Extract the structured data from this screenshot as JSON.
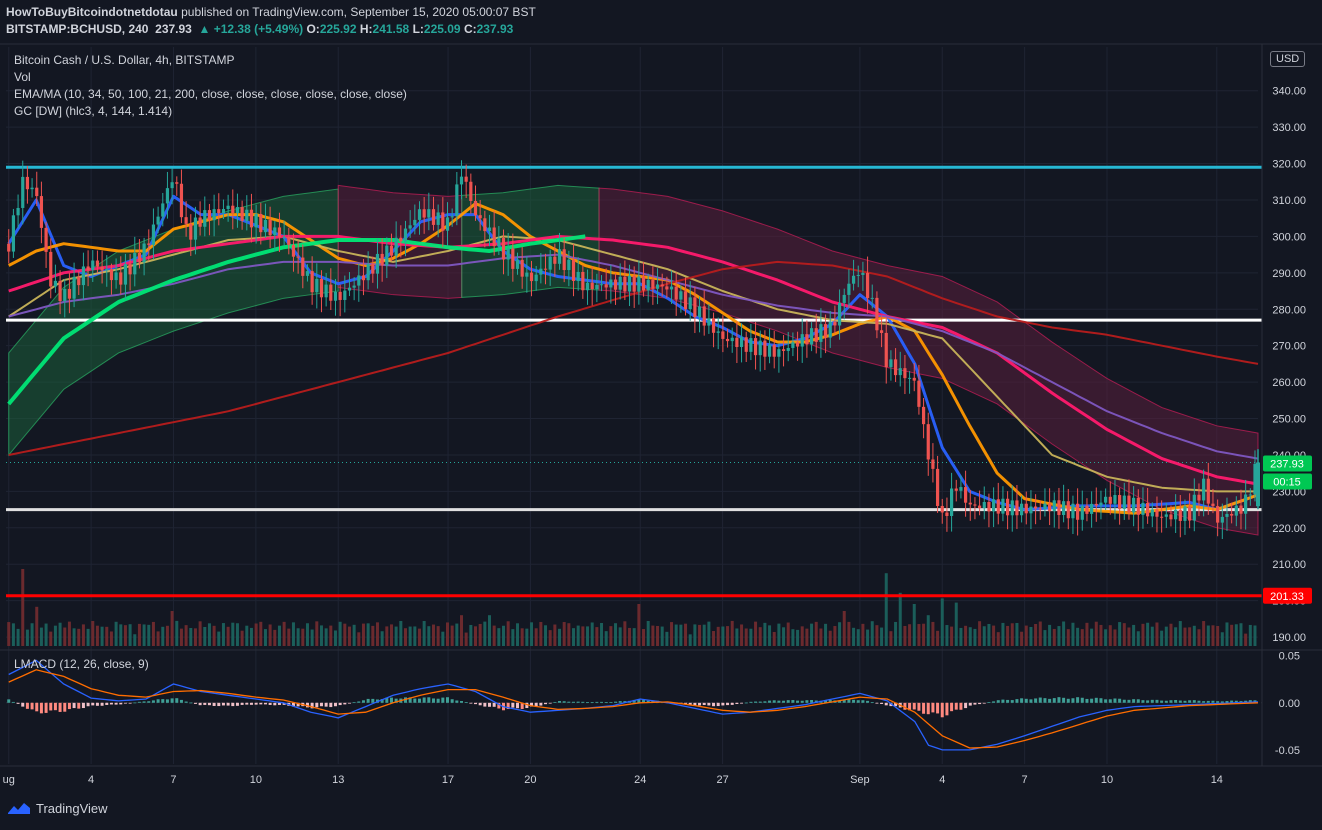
{
  "header": {
    "publisher": "HowToBuyBitcoindotnetdotau",
    "published_text": "published on TradingView.com, September 15, 2020 05:00:07 BST",
    "symbol": "BITSTAMP:BCHUSD, 240",
    "last": "237.93",
    "change": "▲ +12.38 (+5.49%)",
    "o_label": "O:",
    "o_value": "225.92",
    "h_label": "H:",
    "h_value": "241.58",
    "l_label": "L:",
    "l_value": "225.09",
    "c_label": "C:",
    "c_value": "237.93"
  },
  "legend": {
    "title": "Bitcoin Cash / U.S. Dollar, 4h, BITSTAMP",
    "vol": "Vol",
    "ema": "EMA/MA (10, 34, 50, 100, 21, 200, close, close, close, close, close, close)",
    "gc": "GC [DW] (hlc3, 4, 144, 1.414)",
    "lmacd": "LMACD (12, 26, close, 9)"
  },
  "currency": "USD",
  "footer": {
    "brand": "TradingView"
  },
  "price_labels": {
    "last": "237.93",
    "countdown": "00:15",
    "red_line": "201.33"
  },
  "chart_data": [
    {
      "type": "line",
      "title": "Bitcoin Cash / U.S. Dollar, 4h, BITSTAMP",
      "ylim": [
        187,
        352
      ],
      "yticks": [
        "190.00",
        "200.00",
        "210.00",
        "220.00",
        "230.00",
        "240.00",
        "250.00",
        "260.00",
        "270.00",
        "280.00",
        "290.00",
        "300.00",
        "310.00",
        "320.00",
        "330.00",
        "340.00"
      ],
      "xticks": [
        "ug",
        "4",
        "7",
        "10",
        "13",
        "17",
        "20",
        "24",
        "27",
        "Sep",
        "4",
        "7",
        "10",
        "14"
      ],
      "xtick_days": [
        1,
        4,
        7,
        10,
        13,
        17,
        20,
        24,
        27,
        32,
        35,
        38,
        41,
        45
      ],
      "xlim": [
        0.9,
        46.5
      ],
      "horizontal_lines": [
        {
          "value": 319,
          "color": "#26b8d4"
        },
        {
          "value": 277,
          "color": "#ffffff"
        },
        {
          "value": 225,
          "color": "#e0e0e0"
        },
        {
          "value": 201.33,
          "color": "#ff0000"
        }
      ],
      "price_series": {
        "name": "BCHUSD",
        "days": [
          1,
          1.5,
          2,
          2.5,
          3,
          4,
          5,
          6,
          7,
          7.5,
          8,
          9,
          10,
          11,
          12,
          13,
          14,
          15,
          16,
          17,
          17.5,
          18,
          19,
          20,
          21,
          22,
          23,
          24,
          25,
          26,
          27,
          28,
          29,
          30,
          31,
          31.5,
          32,
          32.5,
          33,
          34,
          34.5,
          35,
          35.5,
          36,
          37,
          38,
          39,
          40,
          41,
          42,
          43,
          44,
          44.5,
          45,
          46,
          46.5
        ],
        "values": [
          298,
          315,
          312,
          288,
          283,
          293,
          288,
          297,
          317,
          300,
          305,
          308,
          304,
          300,
          287,
          283,
          290,
          297,
          307,
          303,
          318,
          306,
          296,
          288,
          295,
          286,
          287,
          287,
          286,
          280,
          272,
          270,
          268,
          272,
          275,
          286,
          291,
          280,
          265,
          260,
          240,
          222,
          232,
          226,
          226,
          225,
          226,
          224,
          228,
          226,
          223,
          224,
          232,
          222,
          226,
          238
        ]
      },
      "ema_series": [
        {
          "color": "#2962ff",
          "days": [
            1,
            2,
            3,
            4,
            5,
            6,
            7,
            8,
            9,
            10,
            11,
            12,
            13,
            14,
            15,
            16,
            17,
            18,
            19,
            20,
            21,
            22,
            23,
            24,
            25,
            26,
            27,
            28,
            29,
            30,
            31,
            32,
            33,
            34,
            35,
            36,
            37,
            38,
            40,
            42,
            44,
            45,
            46.5
          ],
          "values": [
            298,
            310,
            292,
            289,
            292,
            295,
            311,
            306,
            306,
            303,
            300,
            290,
            287,
            289,
            296,
            304,
            306,
            306,
            296,
            291,
            289,
            288,
            287,
            287,
            283,
            278,
            275,
            271,
            270,
            272,
            276,
            284,
            278,
            265,
            242,
            230,
            227,
            225,
            226,
            226,
            227,
            225,
            229
          ]
        },
        {
          "color": "#ff9800",
          "days": [
            1,
            2,
            3,
            4,
            5,
            6,
            7,
            8,
            9,
            10,
            11,
            12,
            13,
            14,
            15,
            16,
            17,
            18,
            19,
            20,
            21,
            22,
            23,
            24,
            25,
            26,
            27,
            28,
            29,
            30,
            31,
            32,
            33,
            34,
            35,
            36,
            37,
            38,
            40,
            42,
            44,
            45,
            46.5
          ],
          "values": [
            292,
            296,
            298,
            297,
            296,
            296,
            302,
            304,
            306,
            306,
            304,
            299,
            294,
            292,
            294,
            298,
            303,
            309,
            306,
            300,
            296,
            292,
            290,
            289,
            288,
            284,
            279,
            274,
            271,
            271,
            273,
            276,
            278,
            274,
            262,
            248,
            235,
            228,
            225,
            224,
            226,
            225,
            229
          ]
        },
        {
          "color": "#c8b45a",
          "days": [
            1,
            3,
            5,
            7,
            9,
            11,
            13,
            15,
            17,
            19,
            21,
            23,
            25,
            27,
            29,
            31,
            33,
            35,
            37,
            39,
            41,
            43,
            45,
            46.5
          ],
          "values": [
            278,
            288,
            291,
            295,
            299,
            300,
            296,
            293,
            296,
            300,
            299,
            295,
            291,
            285,
            280,
            277,
            276,
            272,
            256,
            240,
            234,
            231,
            230,
            230
          ]
        },
        {
          "color": "#ff1a6e",
          "days": [
            1,
            3,
            5,
            7,
            9,
            11,
            13,
            15,
            17,
            19,
            21,
            23,
            25,
            27,
            29,
            31,
            33,
            35,
            37,
            39,
            41,
            43,
            45,
            46.5
          ],
          "values": [
            285,
            290,
            292,
            296,
            298,
            300,
            300,
            298,
            297,
            298,
            300,
            299,
            297,
            293,
            288,
            282,
            278,
            275,
            268,
            257,
            247,
            239,
            234,
            232
          ]
        },
        {
          "color": "#7e57c2",
          "days": [
            1,
            3,
            5,
            7,
            9,
            11,
            13,
            15,
            17,
            19,
            21,
            23,
            25,
            27,
            29,
            31,
            33,
            35,
            37,
            39,
            41,
            43,
            45,
            46.5
          ],
          "values": [
            278,
            282,
            284,
            287,
            291,
            293,
            293,
            292,
            292,
            294,
            295,
            292,
            288,
            284,
            281,
            279,
            278,
            274,
            268,
            260,
            252,
            246,
            241,
            239
          ]
        },
        {
          "color": "#b71c1c",
          "days": [
            1,
            5,
            9,
            13,
            17,
            21,
            25,
            27,
            29,
            31,
            33,
            35,
            37,
            39,
            41,
            43,
            45,
            46.5
          ],
          "values": [
            240,
            246,
            252,
            260,
            268,
            278,
            287,
            291,
            293,
            292,
            289,
            283,
            278,
            275,
            273,
            270,
            267,
            265
          ]
        },
        {
          "color": "#00e676",
          "days": [
            1,
            3,
            5,
            7,
            9,
            11,
            13,
            15,
            17,
            18.5,
            20,
            22
          ],
          "values": [
            254,
            272,
            282,
            288,
            293,
            297,
            299,
            299,
            297,
            296,
            298,
            300
          ]
        }
      ],
      "volume": {
        "ylim": [
          0,
          100
        ],
        "days": [
          1.5,
          2,
          7,
          17.5,
          18.5,
          22,
          24,
          29.5,
          31.5,
          33,
          33.5,
          34,
          34.5,
          35,
          35.5,
          46.5
        ],
        "values": [
          55,
          28,
          25,
          22,
          22,
          14,
          30,
          12,
          25,
          52,
          38,
          30,
          22,
          34,
          31,
          16
        ]
      },
      "price_axis_note": "USD"
    },
    {
      "type": "line",
      "title": "LMACD (12, 26, close, 9)",
      "ylim": [
        -0.065,
        0.055
      ],
      "yticks": [
        "0.05",
        "0.00",
        "-0.05"
      ],
      "yticks_values": [
        0.05,
        0,
        -0.05
      ],
      "series": [
        {
          "color": "#2962ff",
          "days": [
            1,
            2,
            3,
            4,
            5,
            6,
            7,
            8,
            9,
            10,
            11,
            12,
            13,
            14,
            15,
            16,
            17,
            18,
            19,
            20,
            21,
            22,
            23,
            24,
            25,
            26,
            27,
            28,
            29,
            30,
            31,
            32,
            33,
            34,
            34.5,
            35,
            36,
            37,
            38,
            39,
            40,
            41,
            42,
            44,
            46.5
          ],
          "values": [
            0.03,
            0.045,
            0.02,
            0.005,
            0.002,
            0.004,
            0.02,
            0.012,
            0.008,
            0.004,
            0.0,
            -0.01,
            -0.016,
            -0.004,
            0.008,
            0.015,
            0.02,
            0.012,
            -0.004,
            -0.01,
            -0.008,
            -0.006,
            -0.003,
            0.004,
            0.0,
            -0.006,
            -0.012,
            -0.01,
            -0.006,
            -0.002,
            0.004,
            0.01,
            0.002,
            -0.02,
            -0.045,
            -0.05,
            -0.05,
            -0.044,
            -0.035,
            -0.025,
            -0.015,
            -0.008,
            -0.004,
            -0.002,
            0.001
          ]
        },
        {
          "color": "#ff6d00",
          "days": [
            1,
            2,
            3,
            4,
            5,
            6,
            7,
            8,
            9,
            10,
            11,
            12,
            13,
            14,
            15,
            16,
            17,
            18,
            19,
            20,
            21,
            22,
            23,
            24,
            25,
            26,
            27,
            28,
            29,
            30,
            31,
            32,
            33,
            34,
            35,
            36,
            37,
            38,
            39,
            40,
            41,
            42,
            44,
            46.5
          ],
          "values": [
            0.022,
            0.035,
            0.028,
            0.015,
            0.008,
            0.006,
            0.012,
            0.013,
            0.01,
            0.006,
            0.003,
            -0.004,
            -0.012,
            -0.01,
            0.0,
            0.008,
            0.014,
            0.014,
            0.006,
            -0.003,
            -0.007,
            -0.006,
            -0.004,
            0.0,
            0.001,
            -0.003,
            -0.008,
            -0.01,
            -0.008,
            -0.004,
            0.001,
            0.006,
            0.004,
            -0.01,
            -0.035,
            -0.048,
            -0.047,
            -0.04,
            -0.032,
            -0.023,
            -0.014,
            -0.008,
            -0.003,
            0.0
          ]
        }
      ],
      "histogram_days": [
        1,
        2,
        3,
        4,
        5,
        6,
        7,
        8,
        9,
        10,
        11,
        12,
        13,
        14,
        15,
        16,
        17,
        18,
        19,
        20,
        21,
        22,
        23,
        24,
        25,
        26,
        27,
        28,
        29,
        30,
        31,
        32,
        33,
        34,
        35,
        36,
        37,
        38,
        39,
        40,
        41,
        42,
        43,
        44,
        45,
        46.5
      ],
      "histogram_values": [
        0.004,
        -0.012,
        -0.01,
        -0.004,
        -0.002,
        0.002,
        0.006,
        -0.003,
        -0.004,
        -0.002,
        -0.003,
        -0.006,
        -0.004,
        0.004,
        0.006,
        0.006,
        0.006,
        -0.002,
        -0.008,
        -0.006,
        0.002,
        0.001,
        0.001,
        0.004,
        0.001,
        -0.003,
        -0.004,
        0.001,
        0.003,
        0.003,
        0.003,
        0.004,
        -0.003,
        -0.01,
        -0.016,
        -0.004,
        0.003,
        0.005,
        0.006,
        0.006,
        0.005,
        0.004,
        0.003,
        0.003,
        0.002,
        0.003
      ]
    }
  ]
}
